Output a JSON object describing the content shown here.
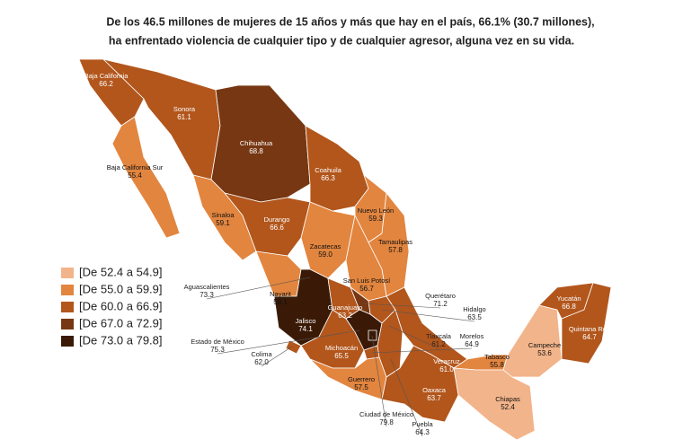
{
  "title": [
    "De los 46.5 millones de mujeres de 15 años y más que hay en el país, 66.1% (30.7 millones),",
    "ha enfrentado violencia de cualquier tipo y de cualquier agresor, alguna vez en su vida."
  ],
  "legend": [
    {
      "label": "[De 52.4 a 54.9]",
      "color": "#f2b48a"
    },
    {
      "label": "[De 55.0 a 59.9]",
      "color": "#e2853f"
    },
    {
      "label": "[De 60.0 a 66.9]",
      "color": "#b2561c"
    },
    {
      "label": "[De 67.0 a 72.9]",
      "color": "#763712"
    },
    {
      "label": "[De 73.0 a 79.8]",
      "color": "#3a1a07"
    }
  ],
  "states": [
    {
      "name": "Baja California",
      "value": 66.2,
      "color": "#b2561c"
    },
    {
      "name": "Baja California Sur",
      "value": 55.4,
      "color": "#e2853f"
    },
    {
      "name": "Sonora",
      "value": 61.1,
      "color": "#b2561c"
    },
    {
      "name": "Chihuahua",
      "value": 68.8,
      "color": "#763712"
    },
    {
      "name": "Coahuila",
      "value": 66.3,
      "color": "#b2561c"
    },
    {
      "name": "Nuevo León",
      "value": 59.3,
      "color": "#e2853f"
    },
    {
      "name": "Tamaulipas",
      "value": 57.8,
      "color": "#e2853f"
    },
    {
      "name": "Sinaloa",
      "value": 59.1,
      "color": "#e2853f"
    },
    {
      "name": "Durango",
      "value": 66.6,
      "color": "#b2561c"
    },
    {
      "name": "Zacatecas",
      "value": 59.0,
      "value_label": "59.0",
      "color": "#e2853f"
    },
    {
      "name": "San Luis Potosí",
      "value": 56.7,
      "color": "#e2853f"
    },
    {
      "name": "Nayarit",
      "value": 58.1,
      "color": "#e2853f"
    },
    {
      "name": "Aguascalientes",
      "value": 73.3,
      "color": "#3a1a07"
    },
    {
      "name": "Jalisco",
      "value": 74.1,
      "color": "#3a1a07"
    },
    {
      "name": "Guanajuato",
      "value": 63.2,
      "color": "#b2561c"
    },
    {
      "name": "Querétaro",
      "value": 71.2,
      "color": "#763712"
    },
    {
      "name": "Hidalgo",
      "value": 63.5,
      "color": "#b2561c"
    },
    {
      "name": "Estado de México",
      "value": 75.3,
      "color": "#3a1a07"
    },
    {
      "name": "Ciudad de México",
      "value": 79.8,
      "color": "#3a1a07"
    },
    {
      "name": "Tlaxcala",
      "value": 61.2,
      "color": "#b2561c"
    },
    {
      "name": "Morelos",
      "value": 64.9,
      "color": "#b2561c"
    },
    {
      "name": "Puebla",
      "value": 64.3,
      "color": "#b2561c"
    },
    {
      "name": "Veracruz",
      "value": 61.0,
      "value_label": "61.0",
      "color": "#b2561c"
    },
    {
      "name": "Michoacán",
      "value": 65.5,
      "color": "#b2561c"
    },
    {
      "name": "Colima",
      "value": 62.0,
      "value_label": "62.0",
      "color": "#b2561c"
    },
    {
      "name": "Guerrero",
      "value": 57.5,
      "color": "#e2853f"
    },
    {
      "name": "Oaxaca",
      "value": 63.7,
      "color": "#b2561c"
    },
    {
      "name": "Tabasco",
      "value": 55.8,
      "color": "#e2853f"
    },
    {
      "name": "Chiapas",
      "value": 52.4,
      "color": "#f2b48a"
    },
    {
      "name": "Campeche",
      "value": 53.6,
      "color": "#f2b48a"
    },
    {
      "name": "Yucatán",
      "value": 66.8,
      "color": "#b2561c"
    },
    {
      "name": "Quintana Roo",
      "value": 64.7,
      "color": "#b2561c"
    }
  ]
}
